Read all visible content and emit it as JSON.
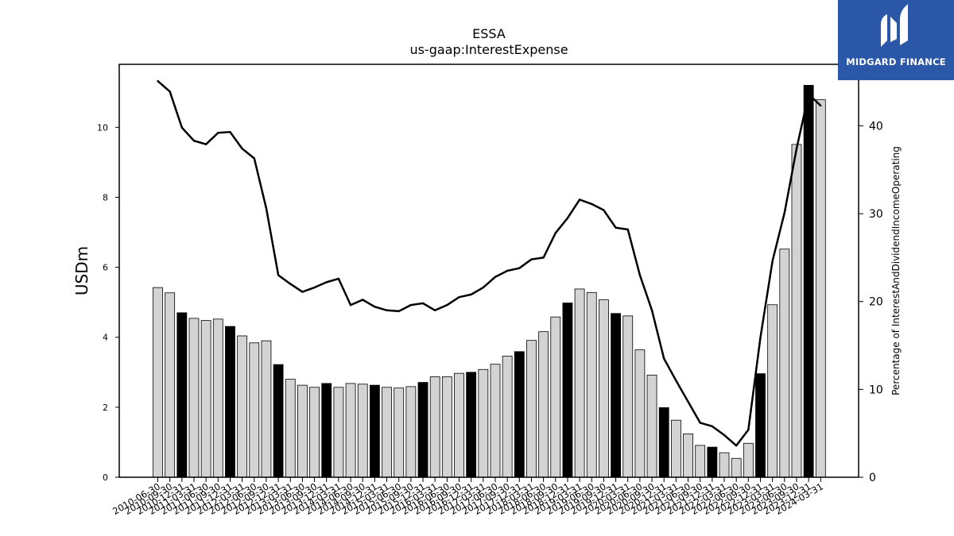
{
  "brand": {
    "name": "MIDGARD FINANCE"
  },
  "colors": {
    "bar_fill": "#d3d3d3",
    "bar_highlight": "#000000",
    "line": "#000000",
    "brand_bg": "#2b57a8"
  },
  "chart_data": {
    "type": "bar",
    "title": "ESSA",
    "subtitle": "us-gaap:InterestExpense",
    "ylabel": "USDm",
    "y2label": "Percentage of InterestAndDividendIncomeOperating",
    "ylim": [
      0,
      11.8
    ],
    "y2lim": [
      0,
      47
    ],
    "yticks": [
      0,
      2,
      4,
      6,
      8,
      10
    ],
    "y2ticks": [
      0,
      10,
      20,
      30,
      40
    ],
    "grid": false,
    "categories": [
      "2010-06-30",
      "2010-09-30",
      "2010-12-31",
      "2011-03-31",
      "2011-06-30",
      "2011-09-30",
      "2011-12-31",
      "2012-03-31",
      "2012-06-30",
      "2012-09-30",
      "2012-12-31",
      "2013-03-31",
      "2013-06-30",
      "2013-09-30",
      "2013-12-31",
      "2014-03-31",
      "2014-06-30",
      "2014-09-30",
      "2014-12-31",
      "2015-03-31",
      "2015-06-30",
      "2015-09-30",
      "2015-12-31",
      "2016-03-31",
      "2016-06-30",
      "2016-09-30",
      "2016-12-31",
      "2017-03-31",
      "2017-06-30",
      "2017-09-30",
      "2017-12-31",
      "2018-03-31",
      "2018-06-30",
      "2018-09-30",
      "2018-12-31",
      "2019-03-31",
      "2019-06-30",
      "2019-09-30",
      "2019-12-31",
      "2020-03-31",
      "2020-06-30",
      "2020-09-30",
      "2020-12-31",
      "2021-03-31",
      "2021-06-30",
      "2021-09-30",
      "2021-12-31",
      "2022-03-31",
      "2022-06-30",
      "2022-09-30",
      "2022-12-31",
      "2023-03-31",
      "2023-06-30",
      "2023-09-30",
      "2023-12-31",
      "2024-03-31"
    ],
    "series": [
      {
        "type": "bar",
        "axis": "left",
        "values": [
          5.42,
          5.27,
          4.7,
          4.54,
          4.48,
          4.52,
          4.31,
          4.04,
          3.84,
          3.9,
          3.22,
          2.8,
          2.63,
          2.57,
          2.68,
          2.57,
          2.68,
          2.66,
          2.63,
          2.57,
          2.55,
          2.59,
          2.71,
          2.87,
          2.87,
          2.97,
          3.0,
          3.08,
          3.23,
          3.46,
          3.59,
          3.91,
          4.16,
          4.58,
          4.98,
          5.38,
          5.28,
          5.07,
          4.68,
          4.61,
          3.64,
          2.92,
          1.99,
          1.63,
          1.24,
          0.91,
          0.86,
          0.7,
          0.54,
          0.97,
          2.96,
          4.93,
          6.52,
          9.51,
          11.2,
          10.79
        ],
        "highlight": [
          false,
          false,
          true,
          false,
          false,
          false,
          true,
          false,
          false,
          false,
          true,
          false,
          false,
          false,
          true,
          false,
          false,
          false,
          true,
          false,
          false,
          false,
          true,
          false,
          false,
          false,
          true,
          false,
          false,
          false,
          true,
          false,
          false,
          false,
          true,
          false,
          false,
          false,
          true,
          false,
          false,
          false,
          true,
          false,
          false,
          false,
          true,
          false,
          false,
          false,
          true,
          false,
          false,
          false,
          true,
          false
        ]
      },
      {
        "type": "line",
        "axis": "right",
        "values": [
          45.1,
          43.9,
          39.8,
          38.3,
          37.9,
          39.2,
          39.3,
          37.4,
          36.3,
          30.6,
          23.0,
          22.0,
          21.1,
          21.6,
          22.2,
          22.6,
          19.6,
          20.2,
          19.4,
          19.0,
          18.9,
          19.6,
          19.8,
          19.0,
          19.6,
          20.5,
          20.8,
          21.6,
          22.8,
          23.5,
          23.8,
          24.8,
          25.0,
          27.8,
          29.5,
          31.6,
          31.1,
          30.4,
          28.4,
          28.2,
          23.0,
          19.0,
          13.5,
          11.0,
          8.6,
          6.2,
          5.8,
          4.8,
          3.6,
          5.4,
          15.9,
          24.6,
          30.1,
          37.4,
          43.6,
          42.3
        ]
      }
    ]
  }
}
